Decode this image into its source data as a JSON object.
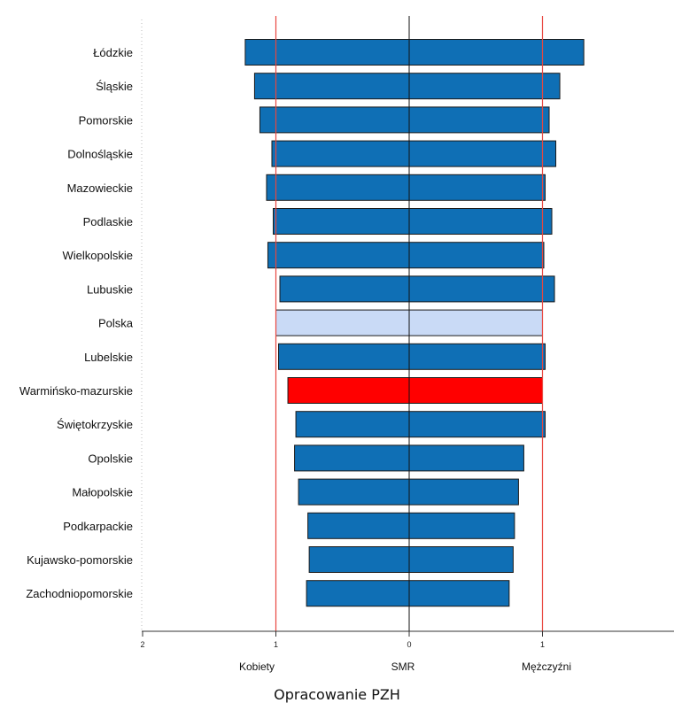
{
  "caption": "Opracowanie PZH",
  "chart_data": {
    "type": "bar",
    "orientation": "horizontal-butterfly",
    "xlabel_left": "Kobiety",
    "xlabel_center": "SMR",
    "xlabel_right": "Mężczyźni",
    "ticks": [
      {
        "label": "2",
        "value": -2
      },
      {
        "label": "1",
        "value": -1
      },
      {
        "label": "0",
        "value": 0
      },
      {
        "label": "1",
        "value": 1
      }
    ],
    "xlim": [
      -2,
      2
    ],
    "reference_lines": [
      -1,
      1
    ],
    "reference_line_color": "#e8473f",
    "bar_color": "#0f6fb5",
    "highlight_colors": {
      "Polska": "#c9daf6",
      "Warmińsko-mazurskie": "#ff0000"
    },
    "categories": [
      "Łódzkie",
      "Śląskie",
      "Pomorskie",
      "Dolnośląskie",
      "Mazowieckie",
      "Podlaskie",
      "Wielkopolskie",
      "Lubuskie",
      "Polska",
      "Lubelskie",
      "Warmińsko-mazurskie",
      "Świętokrzyskie",
      "Opolskie",
      "Małopolskie",
      "Podkarpackie",
      "Kujawsko-pomorskie",
      "Zachodniopomorskie"
    ],
    "series": [
      {
        "name": "Kobiety",
        "values": [
          1.23,
          1.16,
          1.12,
          1.03,
          1.07,
          1.02,
          1.06,
          0.97,
          1.0,
          0.98,
          0.91,
          0.85,
          0.86,
          0.83,
          0.76,
          0.75,
          0.77
        ]
      },
      {
        "name": "Mężczyźni",
        "values": [
          1.31,
          1.13,
          1.05,
          1.1,
          1.02,
          1.07,
          1.01,
          1.09,
          1.0,
          1.02,
          1.0,
          1.02,
          0.86,
          0.82,
          0.79,
          0.78,
          0.75
        ]
      }
    ]
  }
}
